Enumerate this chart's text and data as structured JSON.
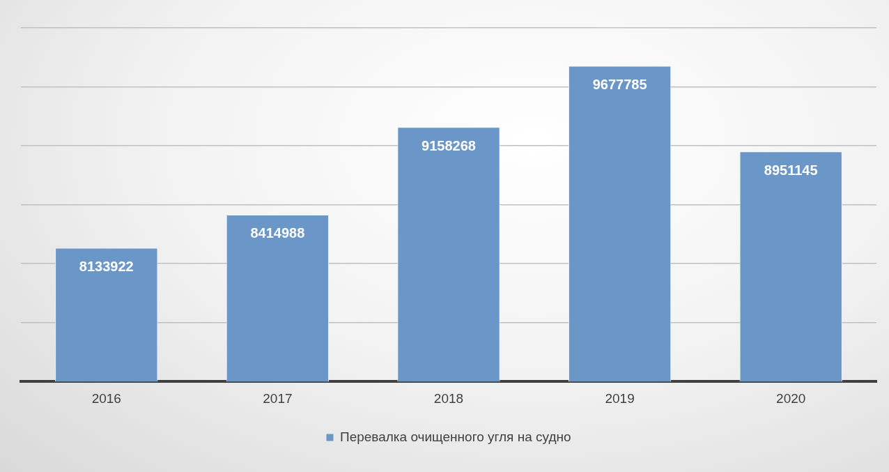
{
  "chart_data": {
    "type": "bar",
    "categories": [
      "2016",
      "2017",
      "2018",
      "2019",
      "2020"
    ],
    "series": [
      {
        "name": "Перевалка очищенного угля на судно",
        "color": "#6a96c8",
        "values": [
          8133922,
          8414988,
          9158268,
          9677785,
          8951145
        ]
      }
    ],
    "ylim": [
      7000000,
      10000000
    ],
    "yticks": [
      {
        "value": 7000000,
        "label": null
      },
      {
        "value": 7500000,
        "label": null
      },
      {
        "value": 8000000,
        "label": null
      },
      {
        "value": 8500000,
        "label": null
      },
      {
        "value": 9000000,
        "label": null
      },
      {
        "value": 9500000,
        "label": null
      },
      {
        "value": 10000000,
        "label": null
      }
    ],
    "grid": "y",
    "legend": "bottom",
    "tick_labels": "x",
    "data_labels": true
  }
}
